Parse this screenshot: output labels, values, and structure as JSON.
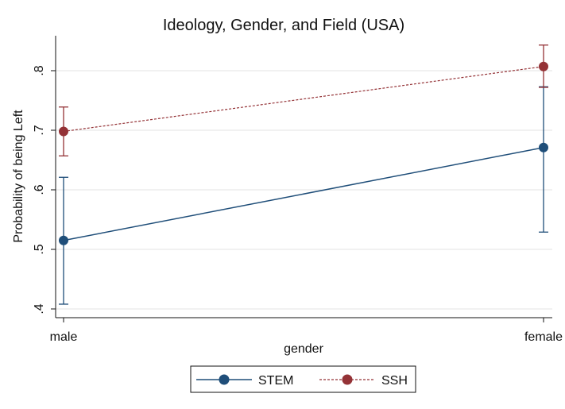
{
  "chart_data": {
    "type": "line",
    "title": "Ideology, Gender, and Field (USA)",
    "xlabel": "gender",
    "ylabel": "Probability of being Left",
    "categories": [
      "male",
      "female"
    ],
    "ylim": [
      0.4,
      0.85
    ],
    "yticks": [
      {
        "value": 0.4,
        "label": ".4"
      },
      {
        "value": 0.5,
        "label": ".5"
      },
      {
        "value": 0.6,
        "label": ".6"
      },
      {
        "value": 0.7,
        "label": ".7"
      },
      {
        "value": 0.8,
        "label": ".8"
      }
    ],
    "grid": "horizontal",
    "legend_position": "bottom",
    "series": [
      {
        "name": "STEM",
        "color": "#1f4e79",
        "line_style": "solid",
        "values": [
          0.515,
          0.671
        ],
        "ci_low": [
          0.408,
          0.529
        ],
        "ci_high": [
          0.621,
          0.773
        ]
      },
      {
        "name": "SSH",
        "color": "#943236",
        "line_style": "dashed",
        "values": [
          0.698,
          0.807
        ],
        "ci_low": [
          0.657,
          0.772
        ],
        "ci_high": [
          0.739,
          0.843
        ]
      }
    ]
  }
}
